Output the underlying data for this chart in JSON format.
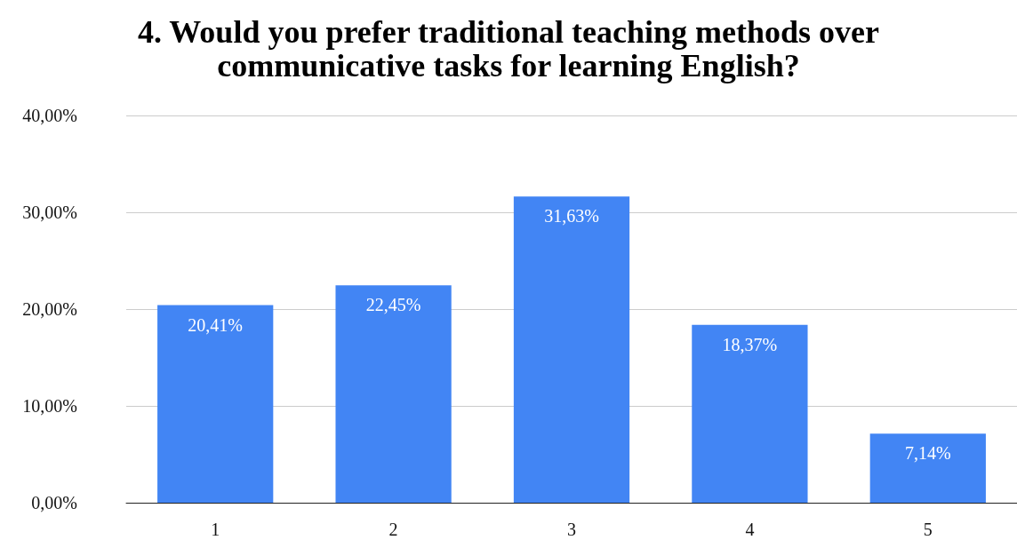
{
  "chart_data": {
    "type": "bar",
    "title": "4. Would you prefer traditional teaching methods over\ncommunicative tasks for learning English?",
    "categories": [
      "1",
      "2",
      "3",
      "4",
      "5"
    ],
    "values": [
      20.41,
      22.45,
      31.63,
      18.37,
      7.14
    ],
    "value_labels": [
      "20,41%",
      "22,45%",
      "31,63%",
      "18,37%",
      "7,14%"
    ],
    "color": "#4285f4",
    "ylim": [
      0,
      40
    ],
    "yticks": [
      {
        "value": 0,
        "label": "0,00%"
      },
      {
        "value": 10,
        "label": "10,00%"
      },
      {
        "value": 20,
        "label": "20,00%"
      },
      {
        "value": 30,
        "label": "30,00%"
      },
      {
        "value": 40,
        "label": "40,00%"
      }
    ],
    "grid": "y"
  }
}
